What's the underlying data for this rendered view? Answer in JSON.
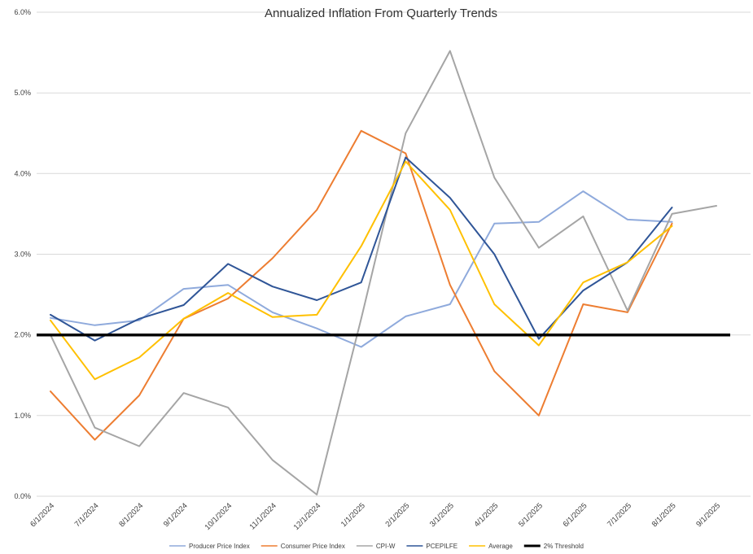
{
  "chart_data": {
    "type": "line",
    "title": "Annualized Inflation From Quarterly Trends",
    "xlabel": "",
    "ylabel": "",
    "ylim": [
      0,
      6
    ],
    "grid": true,
    "legend_position": "bottom",
    "background_color": "#ffffff",
    "gridline_color": "#d9d9d9",
    "axis_text_color": "#404040",
    "yticks": [
      0,
      1,
      2,
      3,
      4,
      5,
      6
    ],
    "ytick_labels": [
      "0.0%",
      "1.0%",
      "2.0%",
      "3.0%",
      "4.0%",
      "5.0%",
      "6.0%"
    ],
    "categories": [
      "6/1/2024",
      "7/1/2024",
      "8/1/2024",
      "9/1/2024",
      "10/1/2024",
      "11/1/2024",
      "12/1/2024",
      "1/1/2025",
      "2/1/2025",
      "3/1/2025",
      "4/1/2025",
      "5/1/2025",
      "6/1/2025",
      "7/1/2025",
      "8/1/2025",
      "9/1/2025"
    ],
    "series": [
      {
        "name": "Producer Price Index",
        "color": "#8FAADC",
        "width": 2,
        "values": [
          2.21,
          2.12,
          2.18,
          2.57,
          2.62,
          2.28,
          2.08,
          1.85,
          2.23,
          2.38,
          3.38,
          3.4,
          3.78,
          3.43,
          3.4,
          null
        ]
      },
      {
        "name": "Consumer Price Index",
        "color": "#ED7D31",
        "width": 2,
        "values": [
          1.3,
          0.7,
          1.25,
          2.2,
          2.45,
          2.95,
          3.55,
          4.53,
          4.25,
          2.62,
          1.55,
          1.0,
          2.38,
          2.28,
          3.38,
          null
        ]
      },
      {
        "name": "CPI-W",
        "color": "#A5A5A5",
        "width": 2,
        "values": [
          2.0,
          0.85,
          0.62,
          1.28,
          1.1,
          0.45,
          0.02,
          2.2,
          4.5,
          5.52,
          3.95,
          3.08,
          3.47,
          2.3,
          3.5,
          3.6
        ]
      },
      {
        "name": "PCEPILFE",
        "color": "#2F5597",
        "width": 2,
        "values": [
          2.25,
          1.93,
          2.2,
          2.37,
          2.88,
          2.6,
          2.43,
          2.65,
          4.2,
          3.7,
          3.0,
          1.95,
          2.55,
          2.9,
          3.58,
          null
        ]
      },
      {
        "name": "Average",
        "color": "#FFC000",
        "width": 2,
        "values": [
          2.18,
          1.45,
          1.72,
          2.2,
          2.52,
          2.22,
          2.25,
          3.1,
          4.15,
          3.55,
          2.38,
          1.87,
          2.65,
          2.9,
          3.35,
          null
        ]
      },
      {
        "name": "2% Threshold",
        "color": "#000000",
        "width": 3.5,
        "span": "full",
        "values": [
          2,
          2,
          2,
          2,
          2,
          2,
          2,
          2,
          2,
          2,
          2,
          2,
          2,
          2,
          2,
          2
        ]
      }
    ]
  }
}
